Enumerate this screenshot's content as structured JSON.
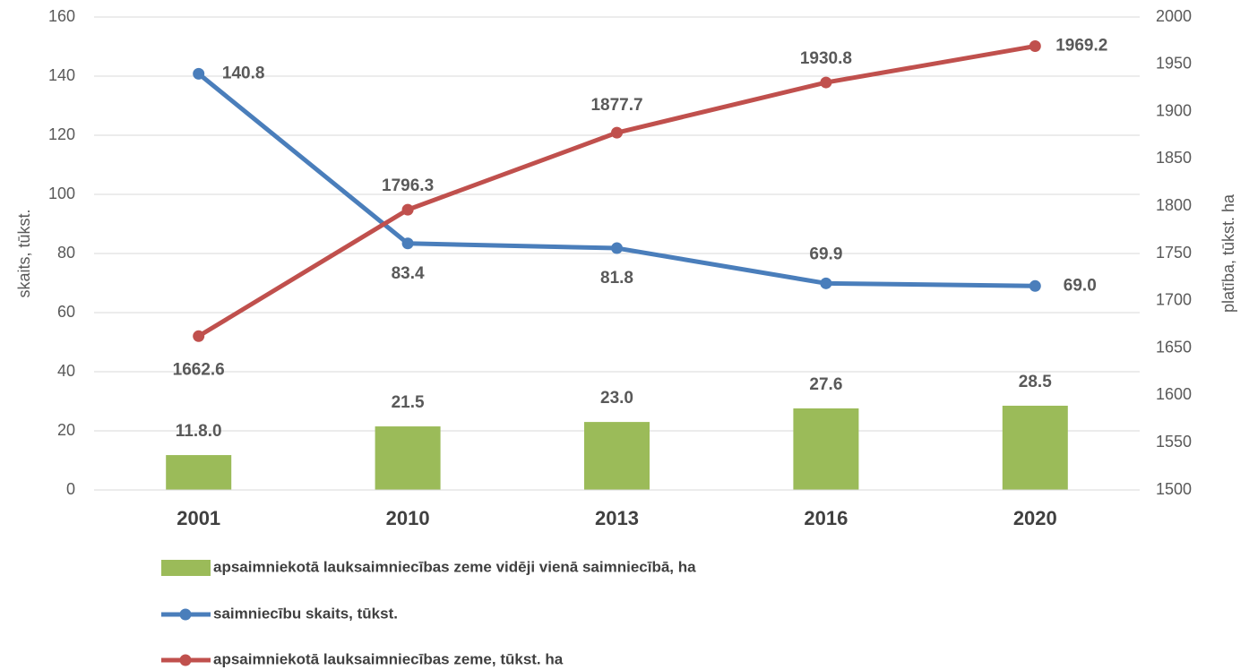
{
  "chart_data": {
    "type": "bar+line",
    "categories": [
      "2001",
      "2010",
      "2013",
      "2016",
      "2020"
    ],
    "y_label": "skaits, tūkst.",
    "y2_label": "platība, tūkst. ha",
    "ylim": [
      0,
      160
    ],
    "yticks": [
      0,
      20,
      40,
      60,
      80,
      100,
      120,
      140,
      160
    ],
    "y2lim": [
      1500,
      2000
    ],
    "y2ticks": [
      1500,
      1550,
      1600,
      1650,
      1700,
      1750,
      1800,
      1850,
      1900,
      1950,
      2000
    ],
    "grid": true,
    "series": [
      {
        "name": "apsaimniekotā lauksaimniecības zeme vidēji vienā saimniecībā, ha",
        "type": "bar",
        "color": "#9bbb59",
        "label_color": "#77933c",
        "values": [
          11.8,
          21.5,
          23.0,
          27.6,
          28.5
        ],
        "value_labels": [
          "11.8.0",
          "21.5",
          "23.0",
          "27.6",
          "28.5"
        ]
      },
      {
        "name": "saimniecību skaits, tūkst.",
        "type": "line",
        "color": "#4a7ebb",
        "label_color": "#2e75b6",
        "values": [
          140.8,
          83.4,
          81.8,
          69.9,
          69.0
        ],
        "value_labels": [
          "140.8",
          "83.4",
          "81.8",
          "69.9",
          "69.0"
        ]
      },
      {
        "name": "apsaimniekotā lauksaimniecības zeme, tūkst. ha",
        "type": "line",
        "axis": "y2",
        "color": "#c0504d",
        "label_color": "#e46c0a",
        "values": [
          1662.6,
          1796.3,
          1877.7,
          1930.8,
          1969.2
        ],
        "value_labels": [
          "1662.6",
          "1796.3",
          "1877.7",
          "1930.8",
          "1969.2"
        ]
      }
    ]
  }
}
